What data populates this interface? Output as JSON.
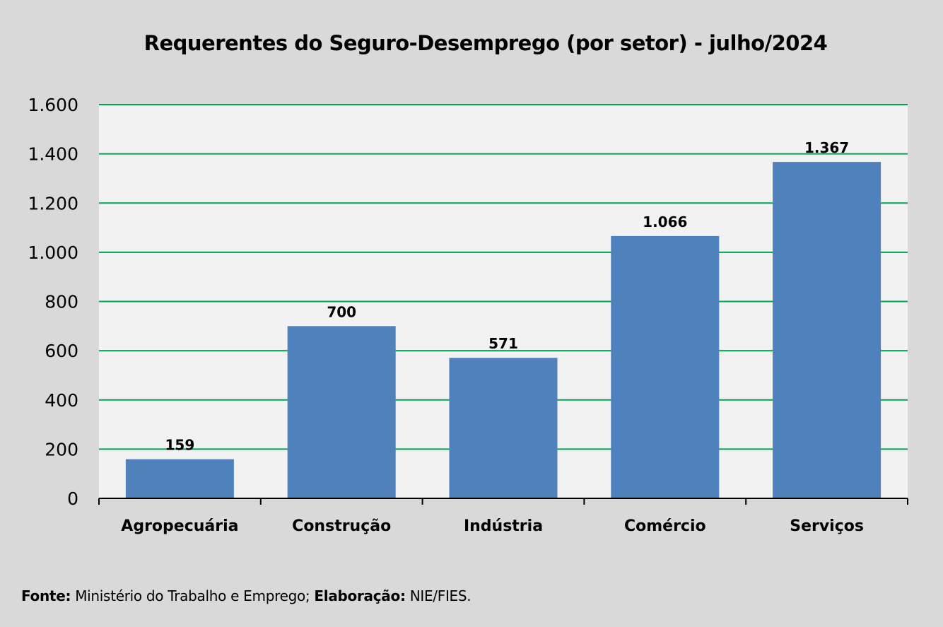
{
  "chart_data": {
    "type": "bar",
    "title": "Requerentes do Seguro-Desemprego (por setor) - julho/2024",
    "categories": [
      "Agropecuária",
      "Construção",
      "Indústria",
      "Comércio",
      "Serviços"
    ],
    "values": [
      159,
      700,
      571,
      1066,
      1367
    ],
    "value_labels": [
      "159",
      "700",
      "571",
      "1.066",
      "1.367"
    ],
    "ylim": [
      0,
      1600
    ],
    "y_ticks": [
      0,
      200,
      400,
      600,
      800,
      1000,
      1200,
      1400,
      1600
    ],
    "y_tick_labels": [
      "0",
      "200",
      "400",
      "600",
      "800",
      "1.000",
      "1.200",
      "1.400",
      "1.600"
    ],
    "xlabel": "",
    "ylabel": "",
    "grid": true,
    "legend": "none"
  },
  "colors": {
    "bar": "#4f81bd",
    "grid": "#00a651",
    "plot_background": "#f2f2f2",
    "page_background": "#d9d9d9"
  },
  "footer": {
    "source_label": "Fonte:",
    "source_text": " Ministério do Trabalho e Emprego; ",
    "elaboration_label": "Elaboração:",
    "elaboration_text": " NIE/FIES."
  }
}
